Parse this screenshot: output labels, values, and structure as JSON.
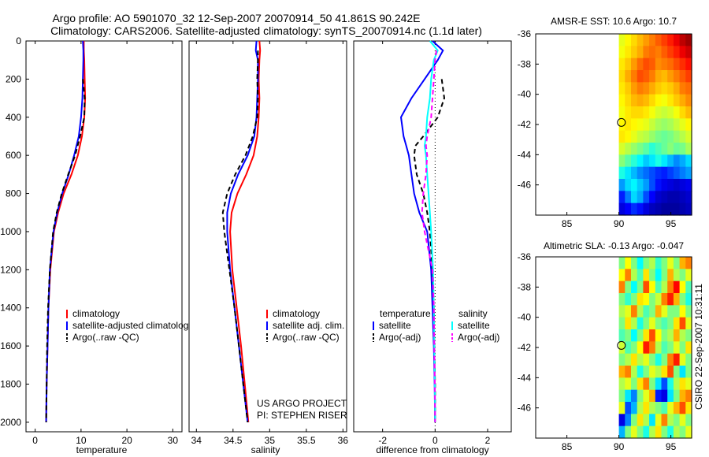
{
  "title": {
    "line1": "Argo profile: AO 5901070_32 12-Sep-2007 20070914_50 41.861S 90.242E",
    "line2": "Climatology: CARS2006. Satellite-adjusted climatology: synTS_20070914.nc (1.1d later)"
  },
  "credit": {
    "line1": "US ARGO PROJECT",
    "line2": "PI: STEPHEN RISER"
  },
  "stamp": "CSIRO 22-Sep-2007 10:31:11",
  "colors": {
    "clim": "#ff0000",
    "sat": "#0000ff",
    "argo": "#000000",
    "sat_sal": "#00ffff",
    "argo_sal": "#ff00ff"
  },
  "chart_data": [
    {
      "type": "line",
      "xlabel": "temperature",
      "xlim": [
        -2,
        32
      ],
      "ylim": [
        2050,
        0
      ],
      "xticks": [
        0,
        10,
        20,
        30
      ],
      "yticks": [
        0,
        200,
        400,
        600,
        800,
        1000,
        1200,
        1400,
        1600,
        1800,
        2000
      ],
      "legend": [
        "climatology",
        "satellite-adjusted climatology",
        "Argo(..raw -QC)"
      ],
      "depth": [
        0,
        50,
        100,
        200,
        300,
        400,
        500,
        600,
        700,
        800,
        900,
        1000,
        1200,
        1400,
        1600,
        1800,
        2000
      ],
      "series": [
        {
          "name": "climatology",
          "color_key": "clim",
          "dash": false,
          "values": [
            10.6,
            10.6,
            10.7,
            10.8,
            10.9,
            10.7,
            10.2,
            9.3,
            7.9,
            6.2,
            5.0,
            4.1,
            3.3,
            2.9,
            2.7,
            2.5,
            2.4
          ]
        },
        {
          "name": "satellite-adjusted climatology",
          "color_key": "sat",
          "dash": false,
          "values": [
            10.4,
            10.5,
            10.5,
            10.4,
            10.3,
            10.0,
            9.5,
            8.5,
            7.3,
            5.9,
            4.8,
            4.0,
            3.2,
            2.9,
            2.7,
            2.5,
            2.4
          ]
        },
        {
          "name": "Argo(..raw -QC)",
          "color_key": "argo",
          "dash": true,
          "values": [
            null,
            null,
            null,
            10.4,
            10.8,
            10.7,
            9.8,
            8.7,
            7.2,
            5.8,
            4.7,
            3.9,
            3.2,
            2.8,
            2.6,
            2.5,
            2.4
          ]
        }
      ]
    },
    {
      "type": "line",
      "xlabel": "salinity",
      "xlim": [
        33.9,
        36.05
      ],
      "ylim": [
        2050,
        0
      ],
      "xticks": [
        34,
        34.5,
        35,
        35.5,
        36
      ],
      "yticks": [],
      "legend": [
        "climatology",
        "satellite adj. clim.",
        "Argo(..raw -QC)"
      ],
      "depth": [
        0,
        50,
        100,
        200,
        300,
        400,
        500,
        600,
        700,
        800,
        900,
        1000,
        1200,
        1400,
        1600,
        1800,
        2000
      ],
      "series": [
        {
          "name": "climatology",
          "color_key": "clim",
          "dash": false,
          "values": [
            34.86,
            34.87,
            34.86,
            34.85,
            34.86,
            34.85,
            34.83,
            34.78,
            34.68,
            34.56,
            34.48,
            34.46,
            34.49,
            34.55,
            34.61,
            34.66,
            34.71
          ]
        },
        {
          "name": "satellite adj. clim.",
          "color_key": "sat",
          "dash": false,
          "values": [
            34.82,
            34.81,
            34.84,
            34.84,
            34.83,
            34.82,
            34.79,
            34.7,
            34.57,
            34.47,
            34.42,
            34.42,
            34.46,
            34.52,
            34.58,
            34.64,
            34.7
          ]
        },
        {
          "name": "Argo(..raw -QC)",
          "color_key": "argo",
          "dash": true,
          "values": [
            null,
            34.84,
            34.84,
            34.83,
            34.84,
            34.83,
            34.77,
            34.67,
            34.53,
            34.42,
            34.36,
            34.38,
            34.45,
            34.52,
            34.58,
            34.64,
            34.7
          ]
        }
      ]
    },
    {
      "type": "line",
      "xlabel": "difference from climatology",
      "xlim": [
        -3.1,
        2.9
      ],
      "ylim": [
        2050,
        0
      ],
      "xticks": [
        -2,
        0,
        2
      ],
      "yticks": [],
      "legend_temperature_title": "temperature",
      "legend_salinity_title": "salinity",
      "legend": [
        "satellite",
        "Argo(-adj)",
        "satellite",
        "Argo(-adj)"
      ],
      "depth": [
        0,
        50,
        100,
        200,
        300,
        400,
        500,
        550,
        600,
        700,
        800,
        900,
        1000,
        1200,
        1400,
        1600,
        1800,
        2000
      ],
      "series": [
        {
          "name": "temperature satellite",
          "color_key": "sat",
          "dash": false,
          "values": [
            -0.1,
            0.3,
            0.1,
            -0.4,
            -0.9,
            -1.3,
            -1.2,
            -1.1,
            -1.0,
            -0.9,
            -0.8,
            -0.6,
            -0.3,
            -0.15,
            -0.1,
            -0.05,
            -0.02,
            0.0
          ]
        },
        {
          "name": "temperature Argo(-adj)",
          "color_key": "argo",
          "dash": true,
          "values": [
            null,
            null,
            null,
            0.25,
            0.35,
            0.1,
            -0.45,
            -0.75,
            -0.8,
            -0.7,
            -0.45,
            -0.3,
            -0.2,
            -0.1,
            -0.05,
            -0.03,
            0.0,
            0.0
          ]
        },
        {
          "name": "salinity satellite",
          "color_key": "sat_sal",
          "dash": false,
          "values": [
            -0.2,
            0.1,
            -0.05,
            -0.15,
            -0.2,
            -0.3,
            -0.35,
            -0.4,
            -0.35,
            -0.3,
            -0.25,
            -0.2,
            -0.15,
            -0.08,
            -0.05,
            -0.03,
            -0.01,
            0.0
          ]
        },
        {
          "name": "salinity Argo(-adj)",
          "color_key": "argo_sal",
          "dash": true,
          "values": [
            null,
            0.05,
            0.0,
            -0.05,
            -0.1,
            -0.15,
            -0.3,
            -0.35,
            -0.3,
            -0.35,
            -0.45,
            -0.5,
            -0.4,
            -0.1,
            -0.05,
            -0.03,
            -0.01,
            0.0
          ]
        }
      ]
    },
    {
      "type": "heatmap",
      "title": "AMSR-E SST: 10.6 Argo: 10.7",
      "xticks": [
        85,
        90,
        95
      ],
      "yticks": [
        -36,
        -38,
        -40,
        -42,
        -44,
        -46
      ],
      "xlim": [
        82,
        97
      ],
      "ylim": [
        -48,
        -36
      ],
      "data_lon_start": 90,
      "marker": {
        "lon": 90.242,
        "lat": -41.861
      },
      "rows": [
        [
          9.8,
          10.2,
          10.6,
          11.0,
          11.4,
          11.8,
          12.2,
          12.6,
          13.0,
          13.6,
          14.2,
          14.6
        ],
        [
          10.0,
          10.4,
          10.8,
          11.2,
          11.8,
          12.0,
          11.8,
          12.2,
          12.6,
          13.0,
          13.6,
          14.0
        ],
        [
          10.4,
          10.8,
          11.4,
          12.0,
          12.4,
          12.2,
          11.6,
          11.8,
          12.0,
          12.4,
          12.8,
          13.2
        ],
        [
          10.6,
          11.2,
          11.8,
          12.4,
          12.2,
          11.8,
          11.2,
          11.0,
          11.4,
          11.8,
          12.2,
          12.6
        ],
        [
          10.4,
          10.8,
          11.4,
          11.8,
          11.6,
          11.2,
          10.8,
          10.6,
          10.8,
          11.2,
          11.8,
          12.0
        ],
        [
          10.2,
          10.6,
          11.0,
          11.2,
          11.0,
          10.6,
          10.2,
          10.0,
          10.4,
          10.8,
          11.2,
          11.6
        ],
        [
          10.0,
          10.4,
          10.6,
          10.6,
          10.4,
          10.0,
          9.6,
          9.4,
          9.6,
          10.0,
          10.6,
          11.0
        ],
        [
          10.2,
          10.4,
          10.2,
          10.0,
          9.8,
          9.4,
          9.0,
          8.8,
          9.0,
          9.4,
          9.8,
          10.2
        ],
        [
          10.4,
          10.2,
          9.8,
          9.4,
          9.2,
          8.8,
          8.4,
          8.2,
          8.4,
          8.8,
          9.2,
          9.6
        ],
        [
          9.6,
          9.2,
          8.8,
          8.4,
          8.0,
          7.4,
          7.8,
          8.2,
          8.6,
          8.2,
          8.4,
          9.0
        ],
        [
          8.6,
          8.0,
          7.4,
          6.8,
          6.2,
          6.6,
          7.2,
          6.6,
          6.0,
          5.4,
          5.8,
          6.4
        ],
        [
          7.2,
          6.6,
          6.0,
          5.4,
          5.0,
          4.6,
          4.2,
          4.0,
          4.4,
          4.8,
          5.2,
          5.6
        ],
        [
          5.6,
          6.4,
          6.8,
          6.2,
          5.6,
          4.6,
          3.8,
          3.4,
          3.2,
          3.0,
          3.2,
          3.4
        ],
        [
          4.0,
          5.2,
          6.4,
          5.8,
          4.6,
          3.6,
          3.0,
          2.8,
          2.6,
          2.6,
          2.8,
          3.0
        ],
        [
          3.2,
          3.6,
          4.2,
          3.8,
          3.2,
          2.8,
          2.6,
          2.4,
          2.4,
          2.4,
          2.6,
          2.8
        ]
      ],
      "vmin": 2,
      "vmax": 15
    },
    {
      "type": "heatmap",
      "title": "Altimetric SLA: -0.13 Argo: -0.047",
      "xticks": [
        85,
        90,
        95
      ],
      "yticks": [
        -36,
        -38,
        -40,
        -42,
        -44,
        -46
      ],
      "xlim": [
        82,
        97
      ],
      "ylim": [
        -48,
        -36
      ],
      "data_lon_start": 90,
      "marker": {
        "lon": 90.242,
        "lat": -41.861
      },
      "rows": [
        [
          0.0,
          0.05,
          0.0,
          -0.05,
          0.0,
          0.02,
          -0.03,
          0.0,
          0.04,
          0.0,
          0.08,
          0.1
        ],
        [
          0.05,
          0.1,
          0.02,
          -0.02,
          0.06,
          0.0,
          -0.05,
          0.0,
          0.08,
          0.02,
          0.0,
          0.04
        ],
        [
          0.1,
          0.0,
          -0.05,
          0.0,
          0.12,
          0.05,
          -0.02,
          0.02,
          0.1,
          0.15,
          0.05,
          -0.02
        ],
        [
          0.0,
          -0.03,
          0.0,
          0.06,
          0.05,
          0.0,
          0.03,
          0.1,
          0.14,
          0.08,
          0.0,
          -0.04
        ],
        [
          0.02,
          0.04,
          0.1,
          0.02,
          -0.02,
          0.0,
          0.08,
          0.04,
          0.0,
          0.0,
          0.05,
          0.0
        ],
        [
          0.0,
          0.06,
          0.02,
          -0.04,
          0.0,
          0.04,
          0.0,
          -0.02,
          0.0,
          0.06,
          0.12,
          0.04
        ],
        [
          -0.02,
          0.0,
          -0.05,
          0.0,
          0.06,
          0.12,
          0.05,
          0.0,
          0.02,
          0.08,
          0.02,
          0.0
        ],
        [
          0.03,
          -0.02,
          0.0,
          0.05,
          0.14,
          0.1,
          0.02,
          -0.02,
          0.0,
          0.04,
          0.0,
          0.06
        ],
        [
          0.0,
          0.02,
          0.06,
          0.02,
          0.04,
          0.0,
          -0.04,
          0.0,
          0.1,
          0.14,
          0.04,
          0.0
        ],
        [
          0.08,
          0.1,
          0.02,
          -0.04,
          0.0,
          0.04,
          0.02,
          0.06,
          0.12,
          0.0,
          -0.06,
          0.0
        ],
        [
          0.02,
          0.04,
          0.0,
          0.06,
          0.1,
          0.0,
          -0.06,
          -0.12,
          -0.04,
          0.02,
          0.06,
          0.04
        ],
        [
          0.0,
          -0.06,
          -0.1,
          0.0,
          0.04,
          0.08,
          -0.14,
          -0.16,
          -0.06,
          0.0,
          0.08,
          0.1
        ],
        [
          0.04,
          -0.12,
          -0.08,
          0.02,
          0.06,
          0.02,
          0.0,
          -0.02,
          0.04,
          0.08,
          0.12,
          0.06
        ],
        [
          -0.16,
          -0.1,
          0.0,
          0.06,
          0.02,
          -0.06,
          0.04,
          0.1,
          0.02,
          0.0,
          0.04,
          0.0
        ],
        [
          -0.08,
          0.0,
          0.04,
          0.0,
          -0.04,
          0.02,
          0.06,
          0.0,
          -0.04,
          0.02,
          0.0,
          0.04
        ]
      ],
      "vmin": -0.2,
      "vmax": 0.2
    }
  ]
}
